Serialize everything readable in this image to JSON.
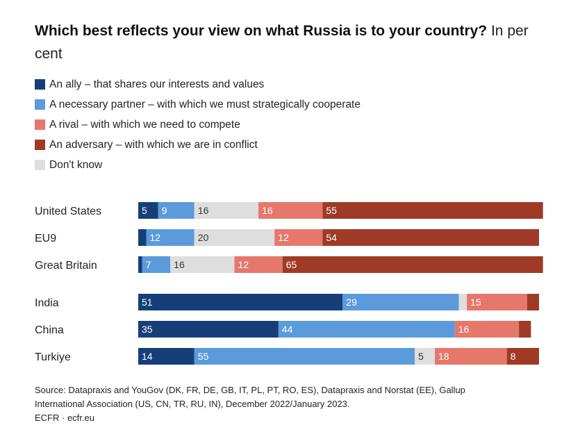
{
  "chart_data": {
    "type": "bar",
    "orientation": "horizontal",
    "stacked": true,
    "title": "Which best reflects your view on what Russia is to your country?",
    "subtitle": "In per cent",
    "categories": [
      "United States",
      "EU9",
      "Great Britain",
      "India",
      "China",
      "Turkiye"
    ],
    "series": [
      {
        "name": "An ally – that shares our interests and values",
        "color": "#163f7a",
        "values": [
          5,
          2,
          1,
          51,
          35,
          14
        ],
        "labels": [
          "5",
          "",
          "",
          "51",
          "35",
          "14"
        ]
      },
      {
        "name": "A necessary partner – with which we must strategically cooperate",
        "color": "#5b9bdb",
        "values": [
          9,
          12,
          7,
          29,
          44,
          55
        ],
        "labels": [
          "9",
          "12",
          "7",
          "29",
          "44",
          "55"
        ]
      },
      {
        "name": "Don't know",
        "color": "#dedede",
        "values": [
          16,
          20,
          16,
          2,
          0,
          5
        ],
        "labels": [
          "16",
          "20",
          "16",
          "",
          "",
          "5"
        ]
      },
      {
        "name": "A rival – with which we need to compete",
        "color": "#e5786b",
        "values": [
          16,
          12,
          12,
          15,
          16,
          18
        ],
        "labels": [
          "16",
          "12",
          "12",
          "15",
          "16",
          "18"
        ]
      },
      {
        "name": "An adversary – with which we are in conflict",
        "color": "#9e3a26",
        "values": [
          55,
          54,
          65,
          3,
          3,
          8
        ],
        "labels": [
          "55",
          "54",
          "65",
          "",
          "",
          "8"
        ]
      }
    ],
    "xlim": [
      0,
      100
    ],
    "grid": false,
    "legend_position": "top-left"
  },
  "title": {
    "bold": "Which best reflects your view on what Russia is to your country?",
    "unit": "In per cent"
  },
  "legend": [
    {
      "label": "An ally – that shares our interests and values",
      "color": "#163f7a"
    },
    {
      "label": "A necessary partner – with which we must strategically cooperate",
      "color": "#5b9bdb"
    },
    {
      "label": "A rival – with which we need to compete",
      "color": "#e5786b"
    },
    {
      "label": "An adversary – with which we are in conflict",
      "color": "#9e3a26"
    },
    {
      "label": "Don't know",
      "color": "#dedede"
    }
  ],
  "source": {
    "line1": "Source: Datapraxis and YouGov (DK, FR, DE, GB, IT, PL, PT, RO, ES), Datapraxis and Norstat (EE), Gallup",
    "line2": "International Association (US, CN, TR, RU, IN), December 2022/January 2023.",
    "line3": "ECFR · ecfr.eu"
  }
}
